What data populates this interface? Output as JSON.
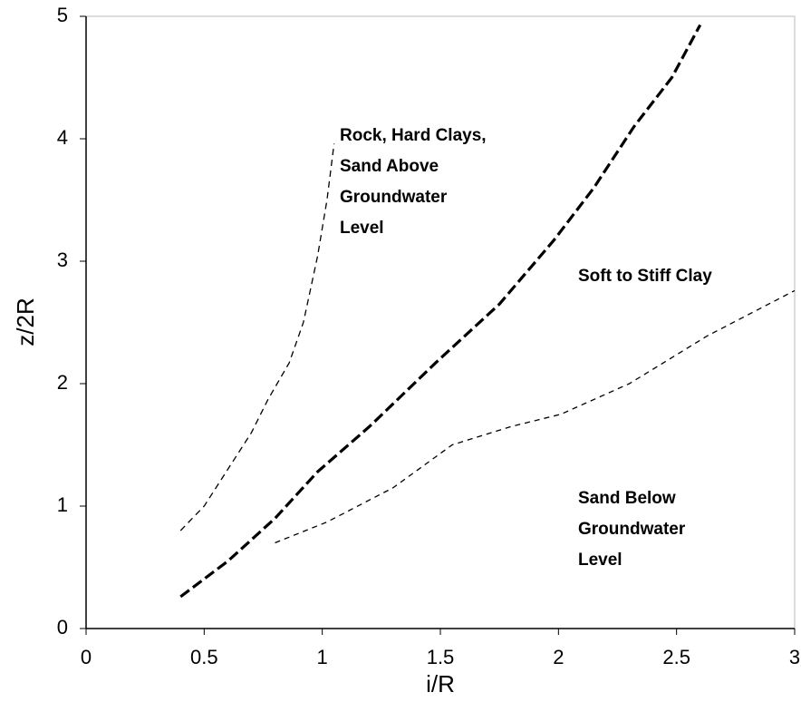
{
  "chart_data": {
    "type": "line",
    "xlabel": "i/R",
    "ylabel": "z/2R",
    "xlim": [
      0,
      3
    ],
    "ylim": [
      0,
      5
    ],
    "xticks": [
      0,
      0.5,
      1,
      1.5,
      2,
      2.5,
      3
    ],
    "yticks": [
      0,
      1,
      2,
      3,
      4,
      5
    ],
    "series": [
      {
        "color": "#000000",
        "x": [
          0.4,
          0.5,
          0.6,
          0.7,
          0.77,
          0.86,
          0.92,
          0.98,
          1.02,
          1.05
        ],
        "values": [
          0.8,
          1.0,
          1.3,
          1.6,
          1.87,
          2.17,
          2.5,
          3.04,
          3.5,
          3.96
        ]
      },
      {
        "color": "#000000",
        "x": [
          0.4,
          0.6,
          0.8,
          0.98,
          1.2,
          1.48,
          1.75,
          1.98,
          2.15,
          2.32,
          2.48,
          2.6
        ],
        "values": [
          0.26,
          0.55,
          0.9,
          1.28,
          1.65,
          2.17,
          2.65,
          3.17,
          3.6,
          4.1,
          4.5,
          4.93
        ]
      },
      {
        "color": "#000000",
        "x": [
          0.8,
          1.02,
          1.3,
          1.55,
          1.8,
          2.01,
          2.3,
          2.63,
          3.0
        ],
        "values": [
          0.7,
          0.87,
          1.15,
          1.5,
          1.65,
          1.75,
          2.0,
          2.39,
          2.76
        ]
      }
    ],
    "annotations": [
      [
        "Rock, Hard Clays,",
        "Sand Above",
        "Groundwater",
        "Level"
      ],
      [
        "Soft to Stiff Clay"
      ],
      [
        "Sand Below",
        "Groundwater",
        "Level"
      ]
    ]
  }
}
